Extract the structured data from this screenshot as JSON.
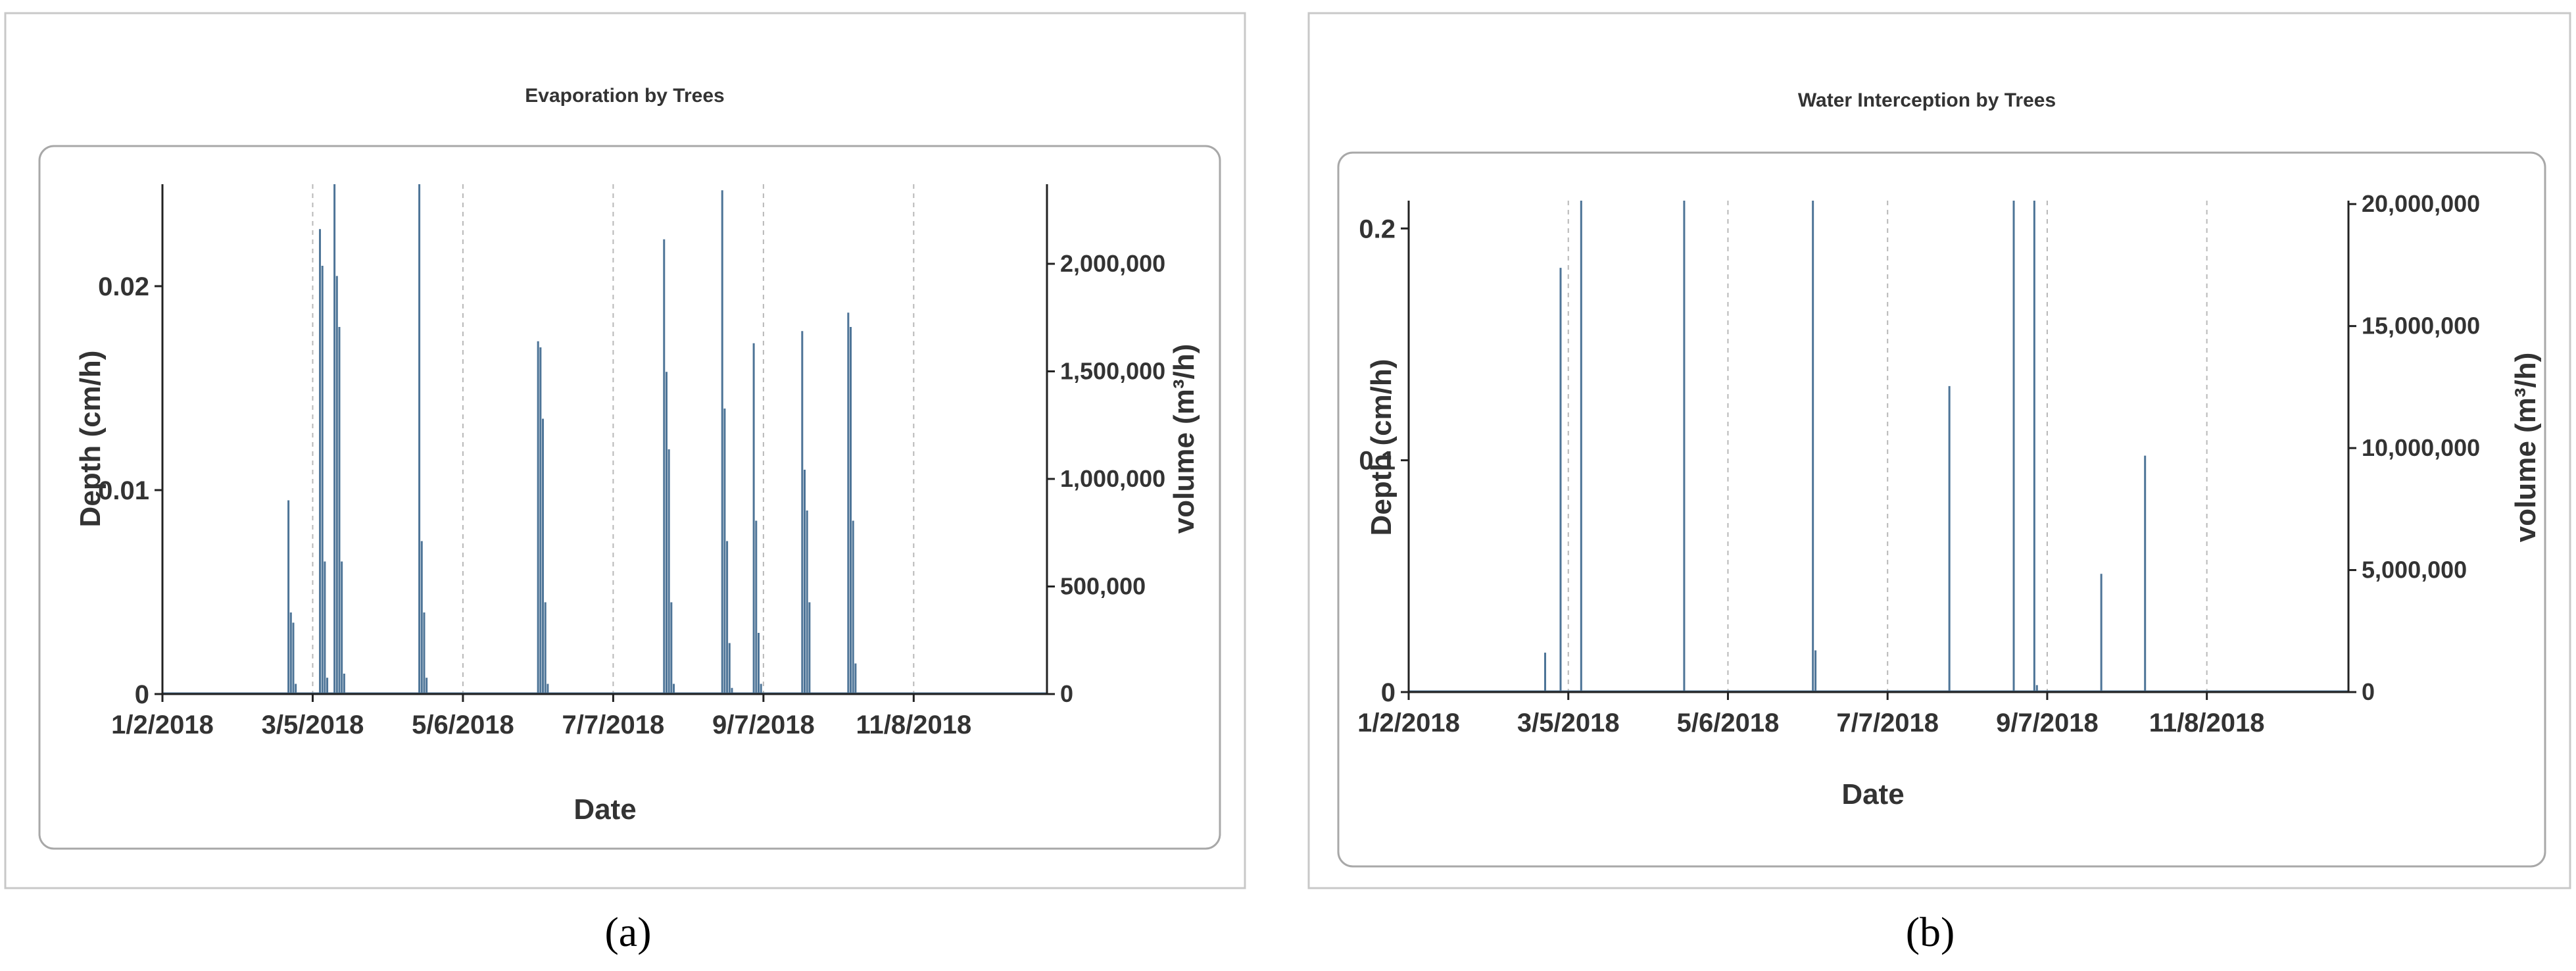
{
  "figure": {
    "panel_a_label": "(a)",
    "panel_b_label": "(b)"
  },
  "chart_data": [
    {
      "type": "bar",
      "title": "Evaporation by Trees",
      "xlabel": "Date",
      "ylabel": "Depth (cm/h)",
      "y2label": "volume (m³/h)",
      "x_ticks": [
        "1/2/2018",
        "3/5/2018",
        "5/6/2018",
        "7/7/2018",
        "9/7/2018",
        "11/8/2018"
      ],
      "x_tick_days": [
        1,
        63,
        125,
        187,
        249,
        311
      ],
      "xlim": [
        1,
        366
      ],
      "y_ticks": [
        "0",
        "0.01",
        "0.02"
      ],
      "y_tick_values": [
        0,
        0.01,
        0.02
      ],
      "ylim": [
        0,
        0.025
      ],
      "y2_ticks": [
        "0",
        "500,000",
        "1,000,000",
        "1,500,000",
        "2,000,000"
      ],
      "y2_tick_values": [
        0,
        500000,
        1000000,
        1500000,
        2000000
      ],
      "y2lim": [
        0,
        2370000
      ],
      "grid": "vertical-dashed",
      "series": [
        {
          "day": [
            53,
            54,
            55,
            56,
            66,
            67,
            68,
            69,
            72,
            73,
            74,
            75,
            76,
            107,
            108,
            109,
            110,
            156,
            157,
            158,
            159,
            160,
            208,
            209,
            210,
            211,
            212,
            232,
            233,
            234,
            235,
            236,
            245,
            246,
            247,
            248,
            265,
            266,
            267,
            268,
            284,
            285,
            286,
            287
          ],
          "value": [
            0.0095,
            0.004,
            0.0035,
            0.0005,
            0.0228,
            0.021,
            0.0065,
            0.0008,
            0.025,
            0.0205,
            0.018,
            0.0065,
            0.001,
            0.025,
            0.0075,
            0.004,
            0.0008,
            0.0173,
            0.017,
            0.0135,
            0.0045,
            0.0005,
            0.0223,
            0.0158,
            0.012,
            0.0045,
            0.0005,
            0.0247,
            0.014,
            0.0075,
            0.0025,
            0.0003,
            0.0172,
            0.0085,
            0.003,
            0.0005,
            0.0178,
            0.011,
            0.009,
            0.0045,
            0.0187,
            0.018,
            0.0085,
            0.0015
          ]
        }
      ]
    },
    {
      "type": "bar",
      "title": "Water Interception by Trees",
      "xlabel": "Date",
      "ylabel": "Depth (cm/h)",
      "y2label": "volume (m³/h)",
      "x_ticks": [
        "1/2/2018",
        "3/5/2018",
        "5/6/2018",
        "7/7/2018",
        "9/7/2018",
        "11/8/2018"
      ],
      "x_tick_days": [
        1,
        63,
        125,
        187,
        249,
        311
      ],
      "xlim": [
        1,
        366
      ],
      "y_ticks": [
        "0",
        "0.1",
        "0.2"
      ],
      "y_tick_values": [
        0,
        0.1,
        0.2
      ],
      "ylim": [
        0,
        0.212
      ],
      "y2_ticks": [
        "0",
        "5,000,000",
        "10,000,000",
        "15,000,000",
        "20,000,000"
      ],
      "y2_tick_values": [
        0,
        5000000,
        10000000,
        15000000,
        20000000
      ],
      "y2lim": [
        0,
        20140000
      ],
      "grid": "vertical-dashed",
      "series": [
        {
          "day": [
            54,
            57,
            60,
            68,
            108,
            158,
            159,
            211,
            236,
            244,
            245,
            270,
            287
          ],
          "value": [
            0.017,
            0.0,
            0.183,
            0.212,
            0.212,
            0.212,
            0.018,
            0.132,
            0.212,
            0.212,
            0.003,
            0.051,
            0.102
          ]
        }
      ]
    }
  ]
}
